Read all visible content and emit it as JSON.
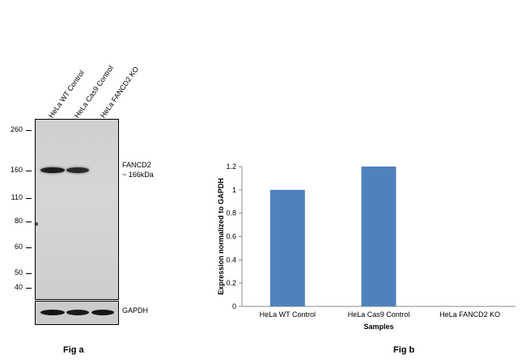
{
  "fig_a": {
    "caption": "Fig a",
    "lanes": [
      "HeLa WT Control",
      "HeLa Cas9 Control",
      "HeLa FANCD2 KO"
    ],
    "mw_markers": [
      "260",
      "160",
      "110",
      "80",
      "60",
      "50",
      "40"
    ],
    "target_label_line1": "FANCD2",
    "target_label_line2": "~ 166kDa",
    "loading_control_label": "GAPDH"
  },
  "fig_b": {
    "caption": "Fig b"
  },
  "chart_data": {
    "type": "bar",
    "categories": [
      "HeLa WT Control",
      "HeLa Cas9 Control",
      "HeLa FANCD2 KO"
    ],
    "values": [
      1.0,
      1.2,
      0
    ],
    "xlabel": "Samples",
    "ylabel": "Expression normalized to GAPDH",
    "ylim": [
      0,
      1.2
    ],
    "yticks": [
      "0",
      "0.2",
      "0.4",
      "0.6",
      "0.8",
      "1",
      "1.2"
    ],
    "bar_color": "#4f81bd",
    "grid": false,
    "legend": "none"
  }
}
